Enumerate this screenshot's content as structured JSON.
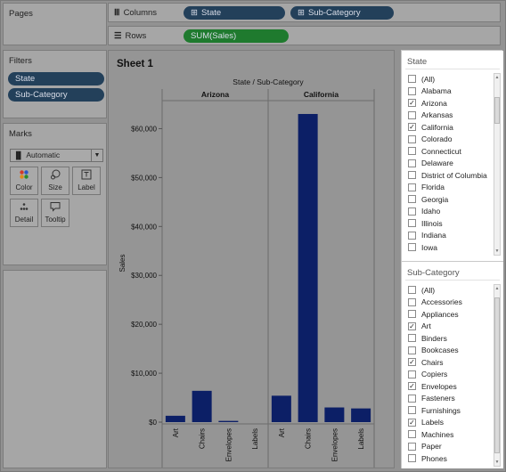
{
  "cards": {
    "pages_title": "Pages",
    "filters_title": "Filters",
    "filters": [
      "State",
      "Sub-Category"
    ],
    "marks_title": "Marks",
    "mark_type": "Automatic",
    "mark_buttons": [
      {
        "label": "Color",
        "icon": "color-icon"
      },
      {
        "label": "Size",
        "icon": "size-icon"
      },
      {
        "label": "Label",
        "icon": "label-icon"
      },
      {
        "label": "Detail",
        "icon": "detail-icon"
      },
      {
        "label": "Tooltip",
        "icon": "tooltip-icon"
      }
    ]
  },
  "shelves": {
    "columns_label": "Columns",
    "columns_pills": [
      "State",
      "Sub-Category"
    ],
    "rows_label": "Rows",
    "rows_pills": [
      "SUM(Sales)"
    ]
  },
  "sheet": {
    "title": "Sheet 1"
  },
  "chart_data": {
    "type": "bar",
    "title": "State / Sub-Category",
    "ylabel": "Sales",
    "ylim": [
      0,
      65000
    ],
    "yticks": [
      "$0",
      "$10,000",
      "$20,000",
      "$30,000",
      "$40,000",
      "$50,000",
      "$60,000"
    ],
    "ytick_values": [
      0,
      10000,
      20000,
      30000,
      40000,
      50000,
      60000
    ],
    "categories": [
      "Art",
      "Chairs",
      "Envelopes",
      "Labels"
    ],
    "panes": [
      {
        "name": "Arizona",
        "values": [
          1300,
          6400,
          250,
          0
        ]
      },
      {
        "name": "California",
        "values": [
          5400,
          63000,
          3000,
          2800
        ]
      }
    ],
    "bar_color": "#0c1f66",
    "gridlines": false
  },
  "state_filter": {
    "title": "State",
    "items": [
      {
        "label": "(All)",
        "checked": false
      },
      {
        "label": "Alabama",
        "checked": false
      },
      {
        "label": "Arizona",
        "checked": true
      },
      {
        "label": "Arkansas",
        "checked": false
      },
      {
        "label": "California",
        "checked": true
      },
      {
        "label": "Colorado",
        "checked": false
      },
      {
        "label": "Connecticut",
        "checked": false
      },
      {
        "label": "Delaware",
        "checked": false
      },
      {
        "label": "District of Columbia",
        "checked": false
      },
      {
        "label": "Florida",
        "checked": false
      },
      {
        "label": "Georgia",
        "checked": false
      },
      {
        "label": "Idaho",
        "checked": false
      },
      {
        "label": "Illinois",
        "checked": false
      },
      {
        "label": "Indiana",
        "checked": false
      },
      {
        "label": "Iowa",
        "checked": false
      }
    ]
  },
  "subcategory_filter": {
    "title": "Sub-Category",
    "items": [
      {
        "label": "(All)",
        "checked": false
      },
      {
        "label": "Accessories",
        "checked": false
      },
      {
        "label": "Appliances",
        "checked": false
      },
      {
        "label": "Art",
        "checked": true
      },
      {
        "label": "Binders",
        "checked": false
      },
      {
        "label": "Bookcases",
        "checked": false
      },
      {
        "label": "Chairs",
        "checked": true
      },
      {
        "label": "Copiers",
        "checked": false
      },
      {
        "label": "Envelopes",
        "checked": true
      },
      {
        "label": "Fasteners",
        "checked": false
      },
      {
        "label": "Furnishings",
        "checked": false
      },
      {
        "label": "Labels",
        "checked": true
      },
      {
        "label": "Machines",
        "checked": false
      },
      {
        "label": "Paper",
        "checked": false
      },
      {
        "label": "Phones",
        "checked": false
      }
    ]
  }
}
